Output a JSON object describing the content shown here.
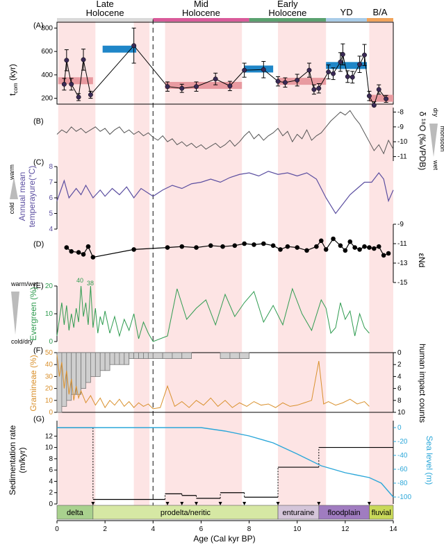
{
  "panels": [
    "(A)",
    "(B)",
    "(C)",
    "(D)",
    "(E)",
    "(F)",
    "(G)"
  ],
  "periods": [
    {
      "label": "Late Holocene",
      "lines": [
        "Late",
        "Holocene"
      ],
      "start": 0,
      "end": 4,
      "color": "#d9d9d9"
    },
    {
      "label": "Mid Holocene",
      "lines": [
        "Mid",
        "Holocene"
      ],
      "start": 4,
      "end": 8,
      "color": "#d95a9a"
    },
    {
      "label": "Early Holocene",
      "lines": [
        "Early",
        "Holocene"
      ],
      "start": 8,
      "end": 11.2,
      "color": "#5aa16f"
    },
    {
      "label": "YD",
      "lines": [
        "YD"
      ],
      "start": 11.2,
      "end": 12.9,
      "color": "#a9cce8"
    },
    {
      "label": "B/A",
      "lines": [
        "B/A"
      ],
      "start": 12.9,
      "end": 14,
      "color": "#f1a35a"
    }
  ],
  "shaded_bands": [
    [
      0.05,
      1.6
    ],
    [
      3.2,
      3.85
    ],
    [
      4.5,
      7.7
    ],
    [
      9.2,
      11.2
    ],
    [
      13.0,
      14.0
    ]
  ],
  "dashed_line_age": 4,
  "colors": {
    "bands": "#fde4e4",
    "tcom": "#3a2a55",
    "blue_bar": "#1f86c8",
    "pink_bar": "#e89aa0",
    "oxygen": "#555555",
    "temperature": "#5b4ea0",
    "nd": "#000000",
    "evergreen": "#2e9b4f",
    "gramineae": "#d9902c",
    "human": "#777777",
    "sea": "#2ba7d9",
    "sed": "#000000"
  },
  "axes": {
    "age_label": "Age (Cal kyr BP)",
    "age_ticks": [
      "0",
      "2",
      "4",
      "6",
      "8",
      "10",
      "12",
      "14"
    ],
    "tcom_label": "t",
    "tcom_sub": "com",
    "tcom_unit": " (kyr)",
    "tcom_ticks": [
      "200",
      "400",
      "600",
      "800"
    ],
    "oxygen_label": "δ ¹⁸O (‰VPDB)",
    "oxygen_ticks": [
      "-8",
      "-9",
      "-10",
      "-11"
    ],
    "oxygen_side_top": "dry",
    "oxygen_side_bottom": "wet",
    "oxygen_side_word": "monsoon",
    "temp_label_1": "Annual mean",
    "temp_label_2": "temperayure(°C)",
    "temp_ticks": [
      "4",
      "5",
      "6",
      "7",
      "8"
    ],
    "temp_side_top": "warm",
    "temp_side_bottom": "cold",
    "nd_label": "εNd",
    "nd_ticks": [
      "-9",
      "-11",
      "-13",
      "-15"
    ],
    "ever_label": "Evergreen (%)",
    "ever_ticks": [
      "0",
      "10",
      "20"
    ],
    "ever_side_top": "warm/wet",
    "ever_side_bottom": "cold/dry",
    "gram_label": "Gramineae (%)",
    "gram_ticks": [
      "0",
      "10",
      "20",
      "30",
      "40",
      "50"
    ],
    "human_label": "human impact counts",
    "human_ticks": [
      "0",
      "2",
      "4",
      "6",
      "8",
      "10"
    ],
    "sed_label_1": "Sedimentation rate",
    "sed_label_2": "(m/kyr)",
    "sed_ticks": [
      "0",
      "2",
      "4",
      "6",
      "8",
      "10",
      "12"
    ],
    "sea_label": "Sea level (m)",
    "sea_ticks": [
      "0",
      "-20",
      "-40",
      "-60",
      "-80",
      "-100"
    ]
  },
  "annotations": {
    "ever_peak_1": "40",
    "ever_peak_2": "38"
  },
  "facies": [
    {
      "label": "delta",
      "start": 0,
      "end": 1.5,
      "color": "#a9d18e"
    },
    {
      "label": "prodelta/neritic",
      "start": 1.5,
      "end": 9.2,
      "color": "#d6e8a4"
    },
    {
      "label": "enturaine",
      "start": 9.2,
      "end": 10.9,
      "color": "#d4c5d9"
    },
    {
      "label": "floodplain",
      "start": 10.9,
      "end": 13.0,
      "color": "#a07cc0"
    },
    {
      "label": "fluvial",
      "start": 13.0,
      "end": 14.0,
      "color": "#c9d95a"
    }
  ],
  "chart_data": [
    {
      "type": "scatter",
      "title": "",
      "xlabel": "Age (Cal kyr BP)",
      "ylabel": "tcom (kyr)",
      "xlim": [
        0,
        14
      ],
      "ylim": [
        150,
        850
      ],
      "x": [
        0.3,
        0.4,
        0.6,
        0.9,
        1.1,
        1.4,
        3.2,
        4.6,
        5.2,
        5.8,
        6.6,
        7.2,
        7.8,
        8.6,
        9.2,
        9.5,
        10.0,
        10.5,
        10.7,
        10.9,
        11.3,
        11.5,
        11.8,
        11.9,
        12.1,
        12.3,
        12.6,
        12.8,
        13.0,
        13.2,
        13.4,
        13.7
      ],
      "y": [
        320,
        525,
        320,
        210,
        530,
        230,
        650,
        300,
        285,
        300,
        365,
        305,
        440,
        445,
        345,
        335,
        355,
        440,
        275,
        285,
        425,
        410,
        510,
        575,
        385,
        380,
        490,
        570,
        220,
        140,
        275,
        195
      ],
      "errors": [
        50,
        90,
        50,
        30,
        90,
        30,
        150,
        40,
        35,
        40,
        50,
        40,
        60,
        70,
        40,
        40,
        50,
        60,
        40,
        40,
        60,
        50,
        80,
        90,
        50,
        50,
        70,
        90,
        40,
        30,
        40,
        30
      ],
      "blue_bars": [
        [
          1.9,
          3.3,
          620
        ],
        [
          7.8,
          9.0,
          450
        ],
        [
          11.2,
          12.9,
          480
        ]
      ],
      "pink_bars": [
        [
          0.05,
          1.5,
          350
        ],
        [
          4.5,
          7.7,
          310
        ],
        [
          9.2,
          11.2,
          345
        ],
        [
          13.0,
          14.0,
          200
        ]
      ]
    },
    {
      "type": "line",
      "title": "",
      "ylabel": "δ18O (‰VPDB)",
      "ylim": [
        -11.3,
        -7.7
      ],
      "x": [
        0.0,
        0.2,
        0.4,
        0.6,
        0.8,
        1.0,
        1.2,
        1.4,
        1.6,
        1.8,
        2.0,
        2.2,
        2.4,
        2.6,
        2.8,
        3.0,
        3.2,
        3.4,
        3.6,
        3.8,
        4.0,
        4.2,
        4.4,
        4.6,
        4.8,
        5.0,
        5.2,
        5.4,
        5.6,
        5.8,
        6.0,
        6.2,
        6.4,
        6.6,
        6.8,
        7.0,
        7.2,
        7.4,
        7.6,
        7.8,
        8.0,
        8.2,
        8.4,
        8.6,
        8.8,
        9.0,
        9.2,
        9.4,
        9.6,
        9.8,
        10.0,
        10.2,
        10.4,
        10.6,
        10.8,
        11.0,
        11.2,
        11.4,
        11.6,
        11.8,
        12.0,
        12.2,
        12.4,
        12.6,
        12.8,
        13.0,
        13.2,
        13.4,
        13.6,
        13.8,
        14.0
      ],
      "y": [
        -9.5,
        -9.2,
        -9.4,
        -9.0,
        -9.3,
        -9.1,
        -9.4,
        -9.2,
        -9.0,
        -9.3,
        -9.1,
        -9.5,
        -9.2,
        -9.0,
        -9.4,
        -9.2,
        -9.5,
        -9.3,
        -9.6,
        -9.4,
        -9.7,
        -9.9,
        -9.6,
        -10.0,
        -9.8,
        -10.2,
        -10.0,
        -10.3,
        -10.1,
        -10.4,
        -10.2,
        -10.5,
        -10.3,
        -10.1,
        -10.4,
        -10.2,
        -9.9,
        -10.3,
        -10.0,
        -9.6,
        -9.3,
        -9.8,
        -9.5,
        -9.9,
        -9.6,
        -9.4,
        -9.1,
        -9.6,
        -9.3,
        -10.0,
        -9.5,
        -9.8,
        -9.2,
        -9.9,
        -9.6,
        -9.4,
        -9.0,
        -8.6,
        -8.3,
        -8.0,
        -8.2,
        -7.9,
        -8.4,
        -8.8,
        -9.4,
        -10.0,
        -10.6,
        -10.2,
        -10.8,
        -9.9,
        -10.5
      ]
    },
    {
      "type": "line",
      "title": "",
      "ylabel": "Annual mean temperayure(°C)",
      "ylim": [
        4,
        8
      ],
      "x": [
        0.0,
        0.3,
        0.5,
        0.8,
        1.0,
        1.2,
        1.5,
        1.8,
        2.0,
        2.3,
        2.6,
        2.9,
        3.2,
        3.5,
        3.8,
        4.0,
        4.4,
        4.8,
        5.2,
        5.6,
        6.0,
        6.4,
        6.8,
        7.2,
        7.6,
        8.0,
        8.4,
        8.8,
        9.2,
        9.6,
        10.0,
        10.4,
        10.8,
        11.2,
        11.6,
        11.9,
        12.2,
        12.5,
        12.8,
        13.1,
        13.4,
        13.6,
        13.8,
        14.0
      ],
      "y": [
        5.8,
        7.1,
        6.0,
        6.6,
        6.2,
        6.8,
        6.0,
        6.5,
        6.1,
        6.6,
        6.2,
        6.7,
        6.0,
        6.6,
        6.3,
        6.1,
        6.5,
        6.8,
        6.6,
        6.9,
        7.0,
        7.2,
        7.0,
        7.3,
        7.5,
        7.6,
        7.4,
        7.7,
        7.5,
        7.6,
        7.4,
        7.6,
        7.2,
        6.0,
        5.0,
        5.6,
        6.2,
        6.6,
        7.0,
        7.0,
        7.6,
        7.2,
        5.8,
        6.5
      ]
    },
    {
      "type": "line",
      "title": "",
      "ylabel": "εNd",
      "ylim": [
        -15,
        -9
      ],
      "x": [
        0.4,
        0.6,
        0.9,
        1.1,
        1.3,
        1.5,
        3.2,
        4.6,
        5.2,
        5.8,
        6.4,
        6.9,
        7.4,
        7.8,
        8.2,
        8.6,
        9.0,
        9.3,
        9.6,
        10.0,
        10.4,
        10.8,
        11.0,
        11.2,
        11.5,
        11.8,
        12.0,
        12.2,
        12.4,
        12.6,
        12.8,
        13.0,
        13.2,
        13.4,
        13.6,
        13.8
      ],
      "y": [
        -11.4,
        -11.8,
        -11.9,
        -12.1,
        -11.3,
        -12.4,
        -11.6,
        -11.4,
        -11.3,
        -11.4,
        -11.2,
        -11.3,
        -11.2,
        -11.0,
        -11.1,
        -11.0,
        -11.2,
        -11.6,
        -11.3,
        -11.4,
        -11.7,
        -11.3,
        -10.7,
        -11.6,
        -10.5,
        -11.2,
        -11.7,
        -10.8,
        -11.4,
        -11.6,
        -11.3,
        -11.4,
        -11.5,
        -11.3,
        -12.2,
        -12.0
      ]
    },
    {
      "type": "line",
      "title": "",
      "ylabel": "Evergreen (%)",
      "ylim": [
        0,
        20
      ],
      "x": [
        0.0,
        0.1,
        0.2,
        0.3,
        0.4,
        0.5,
        0.6,
        0.7,
        0.8,
        0.9,
        1.0,
        1.1,
        1.2,
        1.3,
        1.4,
        1.5,
        1.6,
        1.7,
        1.8,
        1.9,
        2.0,
        2.2,
        2.4,
        2.6,
        2.8,
        3.0,
        3.2,
        3.4,
        3.6,
        3.8,
        4.0,
        4.6,
        5.0,
        5.4,
        5.8,
        6.2,
        6.6,
        7.0,
        7.4,
        7.8,
        8.2,
        8.6,
        9.0,
        9.4,
        9.8,
        10.2,
        10.6,
        11.0,
        11.2,
        11.4,
        11.6,
        11.8,
        12.0,
        12.2,
        12.4,
        12.6,
        12.8,
        13.0
      ],
      "y": [
        2,
        8,
        14,
        6,
        13,
        4,
        10,
        5,
        12,
        7,
        20,
        9,
        14,
        6,
        20,
        5,
        12,
        3,
        9,
        6,
        11,
        3,
        9,
        2,
        8,
        4,
        10,
        1,
        7,
        3,
        0,
        2,
        19,
        8,
        12,
        15,
        6,
        17,
        9,
        14,
        18,
        7,
        13,
        6,
        19,
        10,
        4,
        15,
        12,
        3,
        5,
        14,
        8,
        11,
        2,
        10,
        5,
        3
      ]
    },
    {
      "type": "line",
      "title": "",
      "ylabel": "Gramineae (%)",
      "ylim": [
        0,
        50
      ],
      "x": [
        0.0,
        0.1,
        0.2,
        0.3,
        0.4,
        0.5,
        0.6,
        0.7,
        0.8,
        0.9,
        1.0,
        1.2,
        1.4,
        1.6,
        1.8,
        2.0,
        2.2,
        2.4,
        2.6,
        2.8,
        3.0,
        3.2,
        3.4,
        3.6,
        3.8,
        4.0,
        4.3,
        4.6,
        4.9,
        5.2,
        5.5,
        5.8,
        6.1,
        6.4,
        6.7,
        7.0,
        7.3,
        7.6,
        7.9,
        8.2,
        8.5,
        8.8,
        9.1,
        9.4,
        9.7,
        10.0,
        10.3,
        10.6,
        10.9,
        11.1,
        11.3,
        11.6,
        11.9,
        12.2,
        12.5,
        12.8,
        13.0
      ],
      "y": [
        48,
        30,
        42,
        20,
        35,
        15,
        28,
        10,
        22,
        12,
        18,
        8,
        14,
        6,
        12,
        4,
        10,
        6,
        11,
        5,
        9,
        4,
        8,
        5,
        7,
        3,
        4,
        22,
        5,
        9,
        4,
        10,
        6,
        12,
        5,
        10,
        4,
        8,
        5,
        9,
        6,
        7,
        4,
        8,
        5,
        6,
        8,
        10,
        43,
        7,
        9,
        6,
        8,
        11,
        7,
        9,
        5
      ]
    },
    {
      "type": "bar",
      "title": "",
      "ylabel": "human impact counts",
      "ylim": [
        0,
        10
      ],
      "x": [
        0.0,
        0.2,
        0.4,
        0.6,
        0.8,
        1.0,
        1.2,
        1.4,
        1.6,
        1.8,
        2.0,
        2.2,
        2.4,
        2.6,
        2.8,
        3.0,
        3.2,
        3.4,
        3.6,
        3.8,
        4.0,
        4.4,
        4.8,
        5.2,
        5.6,
        6.0,
        6.2,
        6.8,
        7.2,
        7.6,
        8.0
      ],
      "values": [
        10,
        9,
        8,
        7,
        7,
        6,
        5,
        4,
        4,
        3,
        3,
        2,
        2,
        2,
        2,
        1,
        1,
        1,
        1,
        1,
        1,
        1,
        1,
        1,
        0,
        0,
        0,
        1,
        1,
        1,
        0
      ]
    },
    {
      "type": "line",
      "title": "",
      "ylabel": "Sedimentation rate (m/kyr)",
      "ylim": [
        0,
        14
      ],
      "steps": [
        [
          0,
          1.5,
          13.5
        ],
        [
          1.5,
          4.5,
          0.8
        ],
        [
          4.5,
          5.2,
          1.8
        ],
        [
          5.2,
          5.8,
          1.5
        ],
        [
          5.8,
          6.8,
          1.0
        ],
        [
          6.8,
          7.8,
          2.0
        ],
        [
          7.8,
          9.2,
          1.2
        ],
        [
          9.2,
          10.9,
          6.5
        ],
        [
          10.9,
          14,
          10.0
        ]
      ]
    },
    {
      "type": "line",
      "title": "",
      "ylabel": "Sea level (m)",
      "ylim": [
        -110,
        10
      ],
      "x": [
        0,
        2,
        4,
        6,
        7,
        8,
        9,
        10,
        11,
        12,
        13,
        13.5,
        14
      ],
      "y": [
        0,
        0,
        0,
        0,
        -5,
        -12,
        -22,
        -38,
        -55,
        -65,
        -72,
        -80,
        -100
      ]
    }
  ]
}
